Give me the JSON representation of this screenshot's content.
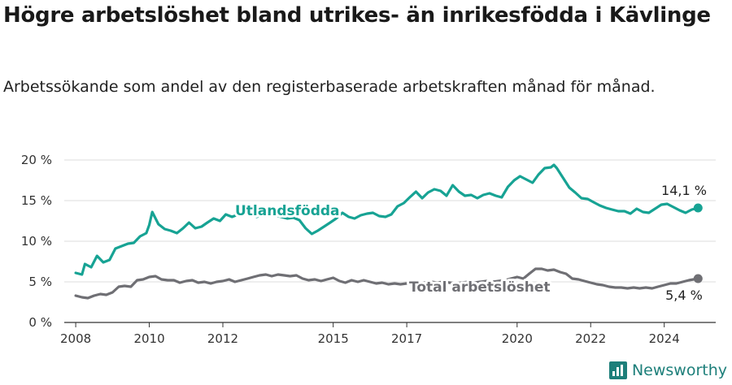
{
  "header": {
    "title": "Högre arbetslöshet bland utrikes- än inrikesfödda i Kävlinge",
    "subtitle": "Arbetssökande som andel av den registerbaserade arbetskraften månad för månad."
  },
  "brand": {
    "name": "Newsworthy",
    "icon": "newsworthy-logo-icon",
    "color": "#1d7f7a"
  },
  "chart_data": {
    "type": "line",
    "title": "Högre arbetslöshet bland utrikes- än inrikesfödda i Kävlinge",
    "subtitle": "Arbetssökande som andel av den registerbaserade arbetskraften månad för månad.",
    "xlim": [
      2007.6,
      2025.4
    ],
    "ylim": [
      0,
      20
    ],
    "grid": true,
    "legend": "inline labels",
    "x_ticks": [
      2008,
      2010,
      2012,
      2015,
      2017,
      2020,
      2022,
      2024
    ],
    "x_tick_labels": [
      "2008",
      "2010",
      "2012",
      "2015",
      "2017",
      "2020",
      "2022",
      "2024"
    ],
    "y_ticks": [
      0,
      5,
      10,
      15,
      20
    ],
    "y_tick_labels": [
      "0 %",
      "5 %",
      "10 %",
      "15 %",
      "20 %"
    ],
    "series": [
      {
        "name": "Utlandsfödda",
        "color": "#17a394",
        "end_label": "14,1 %",
        "points": [
          [
            2008.0,
            6.1
          ],
          [
            2008.17,
            5.9
          ],
          [
            2008.25,
            7.2
          ],
          [
            2008.42,
            6.8
          ],
          [
            2008.58,
            8.2
          ],
          [
            2008.75,
            7.4
          ],
          [
            2008.92,
            7.7
          ],
          [
            2009.08,
            9.1
          ],
          [
            2009.25,
            9.4
          ],
          [
            2009.42,
            9.7
          ],
          [
            2009.58,
            9.8
          ],
          [
            2009.75,
            10.6
          ],
          [
            2009.92,
            11.0
          ],
          [
            2010.0,
            12.0
          ],
          [
            2010.08,
            13.6
          ],
          [
            2010.25,
            12.1
          ],
          [
            2010.42,
            11.5
          ],
          [
            2010.58,
            11.3
          ],
          [
            2010.75,
            11.0
          ],
          [
            2010.92,
            11.6
          ],
          [
            2011.08,
            12.3
          ],
          [
            2011.25,
            11.6
          ],
          [
            2011.42,
            11.8
          ],
          [
            2011.58,
            12.3
          ],
          [
            2011.75,
            12.8
          ],
          [
            2011.92,
            12.5
          ],
          [
            2012.08,
            13.3
          ],
          [
            2012.25,
            13.0
          ],
          [
            2012.42,
            13.3
          ],
          [
            2012.58,
            13.6
          ],
          [
            2012.75,
            13.4
          ],
          [
            2012.92,
            13.0
          ],
          [
            2013.08,
            13.3
          ],
          [
            2013.25,
            13.5
          ],
          [
            2013.42,
            13.2
          ],
          [
            2013.58,
            13.0
          ],
          [
            2013.75,
            12.8
          ],
          [
            2013.92,
            12.9
          ],
          [
            2014.08,
            12.6
          ],
          [
            2014.25,
            11.6
          ],
          [
            2014.42,
            10.9
          ],
          [
            2014.58,
            11.3
          ],
          [
            2014.75,
            11.8
          ],
          [
            2014.92,
            12.3
          ],
          [
            2015.08,
            12.8
          ],
          [
            2015.25,
            13.5
          ],
          [
            2015.42,
            13.0
          ],
          [
            2015.58,
            12.8
          ],
          [
            2015.75,
            13.2
          ],
          [
            2015.92,
            13.4
          ],
          [
            2016.08,
            13.5
          ],
          [
            2016.25,
            13.1
          ],
          [
            2016.42,
            13.0
          ],
          [
            2016.58,
            13.3
          ],
          [
            2016.75,
            14.3
          ],
          [
            2016.92,
            14.7
          ],
          [
            2017.08,
            15.4
          ],
          [
            2017.25,
            16.1
          ],
          [
            2017.42,
            15.3
          ],
          [
            2017.58,
            16.0
          ],
          [
            2017.75,
            16.4
          ],
          [
            2017.92,
            16.2
          ],
          [
            2018.08,
            15.6
          ],
          [
            2018.25,
            16.9
          ],
          [
            2018.42,
            16.1
          ],
          [
            2018.58,
            15.6
          ],
          [
            2018.75,
            15.7
          ],
          [
            2018.92,
            15.3
          ],
          [
            2019.08,
            15.7
          ],
          [
            2019.25,
            15.9
          ],
          [
            2019.42,
            15.6
          ],
          [
            2019.58,
            15.4
          ],
          [
            2019.75,
            16.7
          ],
          [
            2019.92,
            17.5
          ],
          [
            2020.08,
            18.0
          ],
          [
            2020.25,
            17.6
          ],
          [
            2020.42,
            17.2
          ],
          [
            2020.58,
            18.2
          ],
          [
            2020.75,
            19.0
          ],
          [
            2020.92,
            19.1
          ],
          [
            2021.0,
            19.4
          ],
          [
            2021.08,
            19.0
          ],
          [
            2021.25,
            17.8
          ],
          [
            2021.42,
            16.6
          ],
          [
            2021.58,
            16.0
          ],
          [
            2021.75,
            15.3
          ],
          [
            2021.92,
            15.2
          ],
          [
            2022.08,
            14.8
          ],
          [
            2022.25,
            14.4
          ],
          [
            2022.42,
            14.1
          ],
          [
            2022.58,
            13.9
          ],
          [
            2022.75,
            13.7
          ],
          [
            2022.92,
            13.7
          ],
          [
            2023.08,
            13.4
          ],
          [
            2023.25,
            14.0
          ],
          [
            2023.42,
            13.6
          ],
          [
            2023.58,
            13.5
          ],
          [
            2023.75,
            14.0
          ],
          [
            2023.92,
            14.5
          ],
          [
            2024.08,
            14.6
          ],
          [
            2024.25,
            14.2
          ],
          [
            2024.42,
            13.8
          ],
          [
            2024.58,
            13.5
          ],
          [
            2024.75,
            13.9
          ],
          [
            2024.92,
            14.1
          ]
        ]
      },
      {
        "name": "Total arbetslöshet",
        "color": "#6f6f74",
        "end_label": "5,4 %",
        "points": [
          [
            2008.0,
            3.3
          ],
          [
            2008.17,
            3.1
          ],
          [
            2008.33,
            3.0
          ],
          [
            2008.5,
            3.3
          ],
          [
            2008.67,
            3.5
          ],
          [
            2008.83,
            3.4
          ],
          [
            2009.0,
            3.7
          ],
          [
            2009.17,
            4.4
          ],
          [
            2009.33,
            4.5
          ],
          [
            2009.5,
            4.4
          ],
          [
            2009.67,
            5.2
          ],
          [
            2009.83,
            5.3
          ],
          [
            2010.0,
            5.6
          ],
          [
            2010.17,
            5.7
          ],
          [
            2010.33,
            5.3
          ],
          [
            2010.5,
            5.2
          ],
          [
            2010.67,
            5.2
          ],
          [
            2010.83,
            4.9
          ],
          [
            2011.0,
            5.1
          ],
          [
            2011.17,
            5.2
          ],
          [
            2011.33,
            4.9
          ],
          [
            2011.5,
            5.0
          ],
          [
            2011.67,
            4.8
          ],
          [
            2011.83,
            5.0
          ],
          [
            2012.0,
            5.1
          ],
          [
            2012.17,
            5.3
          ],
          [
            2012.33,
            5.0
          ],
          [
            2012.5,
            5.2
          ],
          [
            2012.67,
            5.4
          ],
          [
            2012.83,
            5.6
          ],
          [
            2013.0,
            5.8
          ],
          [
            2013.17,
            5.9
          ],
          [
            2013.33,
            5.7
          ],
          [
            2013.5,
            5.9
          ],
          [
            2013.67,
            5.8
          ],
          [
            2013.83,
            5.7
          ],
          [
            2014.0,
            5.8
          ],
          [
            2014.17,
            5.4
          ],
          [
            2014.33,
            5.2
          ],
          [
            2014.5,
            5.3
          ],
          [
            2014.67,
            5.1
          ],
          [
            2014.83,
            5.3
          ],
          [
            2015.0,
            5.5
          ],
          [
            2015.17,
            5.1
          ],
          [
            2015.33,
            4.9
          ],
          [
            2015.5,
            5.2
          ],
          [
            2015.67,
            5.0
          ],
          [
            2015.83,
            5.2
          ],
          [
            2016.0,
            5.0
          ],
          [
            2016.17,
            4.8
          ],
          [
            2016.33,
            4.9
          ],
          [
            2016.5,
            4.7
          ],
          [
            2016.67,
            4.8
          ],
          [
            2016.83,
            4.7
          ],
          [
            2017.0,
            4.8
          ],
          [
            2017.17,
            4.9
          ],
          [
            2017.33,
            4.8
          ],
          [
            2017.5,
            4.9
          ],
          [
            2017.67,
            5.0
          ],
          [
            2017.83,
            4.9
          ],
          [
            2018.0,
            5.0
          ],
          [
            2018.17,
            4.9
          ],
          [
            2018.33,
            4.8
          ],
          [
            2018.5,
            4.9
          ],
          [
            2018.67,
            5.0
          ],
          [
            2018.83,
            4.9
          ],
          [
            2019.0,
            5.0
          ],
          [
            2019.17,
            5.1
          ],
          [
            2019.33,
            5.0
          ],
          [
            2019.5,
            5.1
          ],
          [
            2019.67,
            5.2
          ],
          [
            2019.83,
            5.4
          ],
          [
            2020.0,
            5.6
          ],
          [
            2020.17,
            5.4
          ],
          [
            2020.33,
            6.0
          ],
          [
            2020.5,
            6.6
          ],
          [
            2020.67,
            6.6
          ],
          [
            2020.83,
            6.4
          ],
          [
            2021.0,
            6.5
          ],
          [
            2021.17,
            6.2
          ],
          [
            2021.33,
            6.0
          ],
          [
            2021.5,
            5.4
          ],
          [
            2021.67,
            5.3
          ],
          [
            2021.83,
            5.1
          ],
          [
            2022.0,
            4.9
          ],
          [
            2022.17,
            4.7
          ],
          [
            2022.33,
            4.6
          ],
          [
            2022.5,
            4.4
          ],
          [
            2022.67,
            4.3
          ],
          [
            2022.83,
            4.3
          ],
          [
            2023.0,
            4.2
          ],
          [
            2023.17,
            4.3
          ],
          [
            2023.33,
            4.2
          ],
          [
            2023.5,
            4.3
          ],
          [
            2023.67,
            4.2
          ],
          [
            2023.83,
            4.4
          ],
          [
            2024.0,
            4.6
          ],
          [
            2024.17,
            4.8
          ],
          [
            2024.33,
            4.8
          ],
          [
            2024.5,
            5.0
          ],
          [
            2024.67,
            5.2
          ],
          [
            2024.92,
            5.4
          ]
        ]
      }
    ]
  }
}
